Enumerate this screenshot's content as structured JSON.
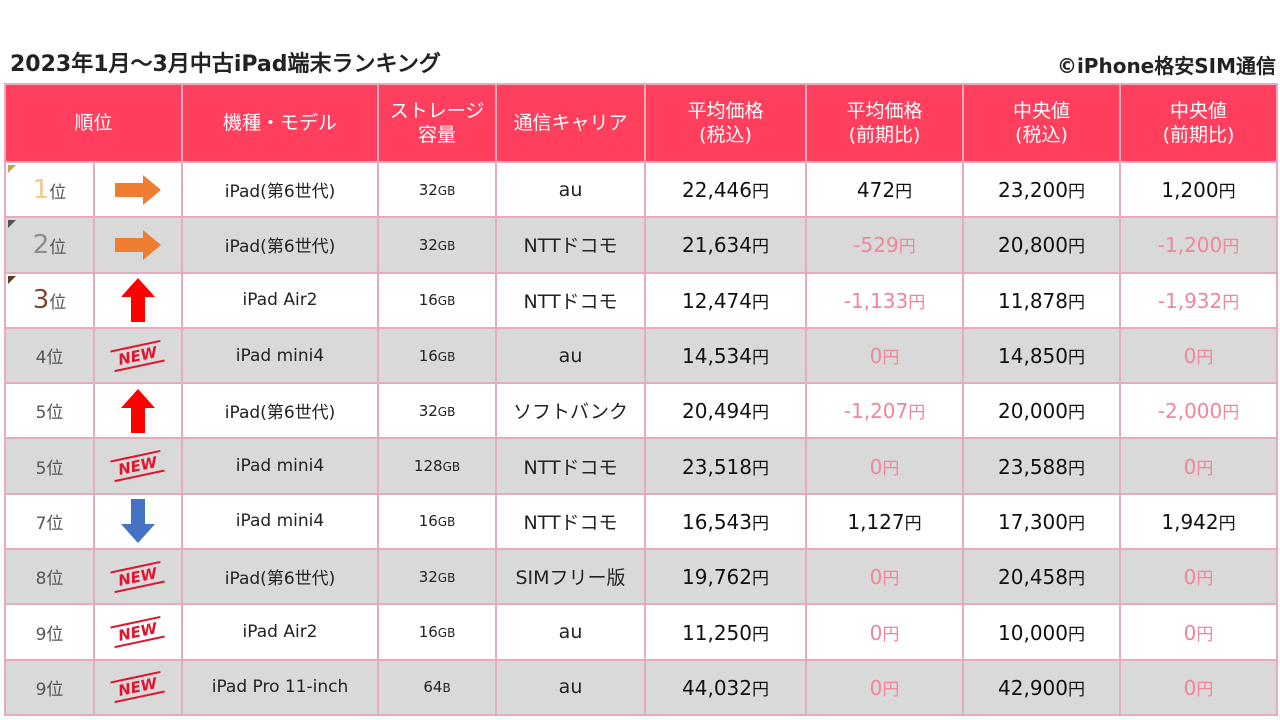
{
  "title": "2023年1月〜3月中古iPad端末ランキング",
  "credit": "©iPhone格安SIM通信",
  "headers": {
    "rank": "順位",
    "model": "機種・モデル",
    "storage_1": "ストレージ",
    "storage_2": "容量",
    "carrier": "通信キャリア",
    "avg_price_1": "平均価格",
    "avg_price_2": "(税込)",
    "avg_change_1": "平均価格",
    "avg_change_2": "(前期比)",
    "median_1": "中央値",
    "median_2": "(税込)",
    "median_change_1": "中央値",
    "median_change_2": "(前期比)"
  },
  "rank_suffix": "位",
  "yen": "円",
  "new_label": "NEW",
  "colors": {
    "header_bg": "#ff3f5d",
    "border": "#e8aabe",
    "negative": "#f0869a",
    "arrow_right": "#ed7d31",
    "arrow_up": "#ff0000",
    "arrow_down": "#4472c4",
    "new_badge": "#e0142c"
  },
  "rows": [
    {
      "rank": "1",
      "trend": "right",
      "model": "iPad(第6世代)",
      "storage": "32",
      "unit": "GB",
      "carrier": "au",
      "avg": "22,446",
      "avg_change": "472",
      "avg_change_neg": false,
      "median": "23,200",
      "median_change": "1,200",
      "median_change_neg": false
    },
    {
      "rank": "2",
      "trend": "right",
      "model": "iPad(第6世代)",
      "storage": "32",
      "unit": "GB",
      "carrier": "NTTドコモ",
      "avg": "21,634",
      "avg_change": "-529",
      "avg_change_neg": true,
      "median": "20,800",
      "median_change": "-1,200",
      "median_change_neg": true
    },
    {
      "rank": "3",
      "trend": "up",
      "model": "iPad Air2",
      "storage": "16",
      "unit": "GB",
      "carrier": "NTTドコモ",
      "avg": "12,474",
      "avg_change": "-1,133",
      "avg_change_neg": true,
      "median": "11,878",
      "median_change": "-1,932",
      "median_change_neg": true
    },
    {
      "rank": "4",
      "trend": "new",
      "model": "iPad mini4",
      "storage": "16",
      "unit": "GB",
      "carrier": "au",
      "avg": "14,534",
      "avg_change": "0",
      "avg_change_neg": true,
      "median": "14,850",
      "median_change": "0",
      "median_change_neg": true
    },
    {
      "rank": "5",
      "trend": "up",
      "model": "iPad(第6世代)",
      "storage": "32",
      "unit": "GB",
      "carrier": "ソフトバンク",
      "avg": "20,494",
      "avg_change": "-1,207",
      "avg_change_neg": true,
      "median": "20,000",
      "median_change": "-2,000",
      "median_change_neg": true
    },
    {
      "rank": "5",
      "trend": "new",
      "model": "iPad mini4",
      "storage": "128",
      "unit": "GB",
      "carrier": "NTTドコモ",
      "avg": "23,518",
      "avg_change": "0",
      "avg_change_neg": true,
      "median": "23,588",
      "median_change": "0",
      "median_change_neg": true
    },
    {
      "rank": "7",
      "trend": "down",
      "model": "iPad mini4",
      "storage": "16",
      "unit": "GB",
      "carrier": "NTTドコモ",
      "avg": "16,543",
      "avg_change": "1,127",
      "avg_change_neg": false,
      "median": "17,300",
      "median_change": "1,942",
      "median_change_neg": false
    },
    {
      "rank": "8",
      "trend": "new",
      "model": "iPad(第6世代)",
      "storage": "32",
      "unit": "GB",
      "carrier": "SIMフリー版",
      "avg": "19,762",
      "avg_change": "0",
      "avg_change_neg": true,
      "median": "20,458",
      "median_change": "0",
      "median_change_neg": true
    },
    {
      "rank": "9",
      "trend": "new",
      "model": "iPad Air2",
      "storage": "16",
      "unit": "GB",
      "carrier": "au",
      "avg": "11,250",
      "avg_change": "0",
      "avg_change_neg": true,
      "median": "10,000",
      "median_change": "0",
      "median_change_neg": true
    },
    {
      "rank": "9",
      "trend": "new",
      "model": "iPad Pro 11-inch",
      "storage": "64",
      "unit": "B",
      "carrier": "au",
      "avg": "44,032",
      "avg_change": "0",
      "avg_change_neg": true,
      "median": "42,900",
      "median_change": "0",
      "median_change_neg": true
    }
  ]
}
